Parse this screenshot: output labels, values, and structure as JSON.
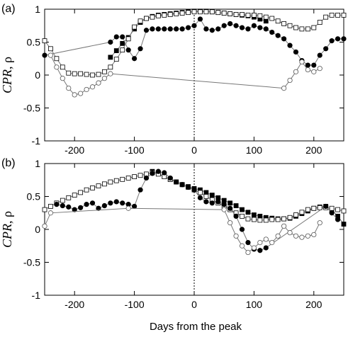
{
  "xlabel": "Days from the peak",
  "ylabel": "CPR, ρ",
  "chart_data": [
    {
      "type": "scatter",
      "panel_label": "(a)",
      "xlim": [
        -250,
        250
      ],
      "ylim": [
        -1,
        1
      ],
      "xticks": [
        -200,
        -100,
        0,
        100,
        200
      ],
      "yticks": [
        -1,
        -0.5,
        0,
        0.5,
        1
      ],
      "xtick_labels": [
        "-200",
        "-100",
        "0",
        "100",
        "200"
      ],
      "ytick_labels": [
        "-1",
        "-0.5",
        "0",
        "0.5",
        "1"
      ],
      "vline_x": 0,
      "series": [
        {
          "marker": "filled-square",
          "x": [
            -140,
            -130,
            -120,
            -110,
            -100,
            -90,
            -80,
            -70,
            -60,
            -50,
            -40,
            -30,
            -20,
            -10,
            0,
            10,
            20,
            30,
            40,
            50,
            60,
            70,
            80,
            90,
            100,
            110,
            120
          ],
          "y": [
            0.27,
            0.37,
            0.48,
            0.57,
            0.7,
            0.8,
            0.86,
            0.89,
            0.91,
            0.92,
            0.93,
            0.94,
            0.95,
            0.96,
            0.97,
            0.97,
            0.97,
            0.96,
            0.95,
            0.94,
            0.93,
            0.92,
            0.91,
            0.9,
            0.88,
            0.85,
            0.82
          ]
        },
        {
          "marker": "open-square",
          "x": [
            -250,
            -240,
            -230,
            -220,
            -210,
            -200,
            -190,
            -180,
            -170,
            -160,
            -150,
            -140,
            -130,
            -120,
            -110,
            -100,
            -90,
            -80,
            -70,
            -60,
            -50,
            -40,
            -30,
            -20,
            -10,
            0,
            10,
            20,
            30,
            40,
            50,
            60,
            70,
            80,
            90,
            100,
            110,
            120,
            130,
            140,
            150,
            160,
            170,
            180,
            190,
            200,
            210,
            220,
            230,
            240,
            250
          ],
          "y": [
            0.52,
            0.4,
            0.25,
            0.12,
            0.03,
            0.02,
            0.02,
            0.01,
            0.0,
            0.01,
            0.05,
            0.12,
            0.24,
            0.38,
            0.55,
            0.73,
            0.82,
            0.86,
            0.88,
            0.9,
            0.91,
            0.92,
            0.93,
            0.94,
            0.95,
            0.96,
            0.96,
            0.96,
            0.96,
            0.95,
            0.94,
            0.93,
            0.92,
            0.92,
            0.91,
            0.91,
            0.9,
            0.88,
            0.86,
            0.82,
            0.78,
            0.75,
            0.72,
            0.7,
            0.7,
            0.72,
            0.8,
            0.88,
            0.91,
            0.91,
            0.91
          ]
        },
        {
          "marker": "filled-circle",
          "x": [
            -250,
            -140,
            -130,
            -120,
            -110,
            -100,
            -90,
            -80,
            -70,
            -60,
            -50,
            -40,
            -30,
            -20,
            -10,
            0,
            10,
            20,
            30,
            40,
            50,
            60,
            70,
            80,
            90,
            100,
            110,
            120,
            130,
            140,
            150,
            160,
            170,
            180,
            190,
            200,
            210,
            220,
            230,
            240,
            250
          ],
          "y": [
            0.3,
            0.5,
            0.58,
            0.58,
            0.38,
            0.25,
            0.4,
            0.68,
            0.7,
            0.7,
            0.7,
            0.7,
            0.7,
            0.7,
            0.72,
            0.75,
            0.85,
            0.7,
            0.68,
            0.7,
            0.75,
            0.78,
            0.75,
            0.72,
            0.7,
            0.75,
            0.72,
            0.7,
            0.65,
            0.6,
            0.55,
            0.45,
            0.35,
            0.22,
            0.15,
            0.15,
            0.3,
            0.4,
            0.52,
            0.55,
            0.55
          ]
        },
        {
          "marker": "open-circle",
          "x": [
            -240,
            -230,
            -220,
            -210,
            -200,
            -190,
            -180,
            -170,
            -160,
            -150,
            -140,
            150,
            160,
            170,
            180,
            190,
            200,
            210
          ],
          "y": [
            0.3,
            0.12,
            -0.05,
            -0.2,
            -0.3,
            -0.28,
            -0.22,
            -0.18,
            -0.12,
            -0.05,
            0.02,
            -0.2,
            -0.08,
            0.05,
            0.2,
            0.08,
            0.05,
            0.1
          ]
        }
      ]
    },
    {
      "type": "scatter",
      "panel_label": "(b)",
      "xlim": [
        -250,
        250
      ],
      "ylim": [
        -1,
        1
      ],
      "xticks": [
        -200,
        -100,
        0,
        100,
        200
      ],
      "yticks": [
        -1,
        -0.5,
        0,
        0.5,
        1
      ],
      "xtick_labels": [
        "-200",
        "-100",
        "0",
        "100",
        "200"
      ],
      "ytick_labels": [
        "-1",
        "-0.5",
        "0",
        "0.5",
        "1"
      ],
      "vline_x": 0,
      "series": [
        {
          "marker": "filled-square",
          "x": [
            -70,
            -60,
            -50,
            -40,
            -30,
            -20,
            -10,
            0,
            10,
            20,
            30,
            40,
            50,
            60,
            70,
            80,
            90,
            100,
            110,
            120,
            130,
            140,
            150,
            160,
            170,
            180,
            190,
            200,
            210,
            220,
            230,
            240,
            250
          ],
          "y": [
            0.88,
            0.85,
            0.8,
            0.76,
            0.72,
            0.68,
            0.65,
            0.62,
            0.6,
            0.56,
            0.52,
            0.48,
            0.44,
            0.4,
            0.36,
            0.3,
            0.26,
            0.22,
            0.2,
            0.18,
            0.17,
            0.16,
            0.16,
            0.17,
            0.2,
            0.24,
            0.28,
            0.32,
            0.34,
            0.35,
            0.3,
            0.2,
            0.08
          ]
        },
        {
          "marker": "open-square",
          "x": [
            -250,
            -240,
            -230,
            -220,
            -210,
            -200,
            -190,
            -180,
            -170,
            -160,
            -150,
            -140,
            -130,
            -120,
            -110,
            -100,
            -90,
            -80,
            -70,
            -60,
            -50,
            -40,
            -30,
            -20,
            -10,
            0,
            10,
            20,
            30,
            40,
            50,
            60,
            70,
            80,
            90,
            100,
            110,
            120,
            130,
            140,
            150,
            160,
            170,
            180,
            190,
            200,
            210,
            220,
            230,
            240,
            250
          ],
          "y": [
            0.3,
            0.35,
            0.4,
            0.44,
            0.48,
            0.52,
            0.56,
            0.6,
            0.63,
            0.66,
            0.69,
            0.72,
            0.74,
            0.76,
            0.78,
            0.8,
            0.82,
            0.84,
            0.86,
            0.84,
            0.8,
            0.76,
            0.72,
            0.68,
            0.64,
            0.6,
            0.56,
            0.5,
            0.45,
            0.4,
            0.35,
            0.3,
            0.25,
            0.2,
            0.16,
            0.15,
            0.14,
            0.14,
            0.15,
            0.15,
            0.16,
            0.18,
            0.22,
            0.26,
            0.3,
            0.32,
            0.33,
            0.33,
            0.32,
            0.3,
            0.28
          ]
        },
        {
          "marker": "filled-circle",
          "x": [
            -230,
            -220,
            -210,
            -200,
            -190,
            -180,
            -170,
            -160,
            -150,
            -140,
            -130,
            -120,
            -110,
            -100,
            -90,
            -80,
            -70,
            -60,
            -50,
            -40,
            -30,
            -20,
            -10,
            0,
            10,
            20,
            30,
            40,
            50,
            60,
            70,
            80,
            90,
            100,
            110,
            120,
            220,
            230,
            240
          ],
          "y": [
            0.38,
            0.36,
            0.34,
            0.3,
            0.33,
            0.38,
            0.4,
            0.32,
            0.36,
            0.4,
            0.42,
            0.4,
            0.38,
            0.35,
            0.6,
            0.78,
            0.85,
            0.88,
            0.86,
            0.78,
            0.72,
            0.68,
            0.64,
            0.6,
            0.48,
            0.42,
            0.4,
            0.42,
            0.38,
            0.32,
            0.2,
            0.0,
            -0.2,
            -0.3,
            -0.32,
            -0.28,
            0.35,
            0.25,
            0.15
          ]
        },
        {
          "marker": "open-circle",
          "x": [
            -250,
            -240,
            -110,
            50,
            60,
            70,
            80,
            90,
            100,
            110,
            120,
            130,
            140,
            150,
            160,
            170,
            180,
            190,
            200,
            210
          ],
          "y": [
            0.05,
            0.25,
            0.32,
            0.3,
            0.1,
            -0.1,
            -0.25,
            -0.35,
            -0.28,
            -0.2,
            -0.15,
            -0.2,
            -0.1,
            0.05,
            -0.05,
            -0.1,
            -0.12,
            -0.1,
            -0.08,
            0.1
          ]
        }
      ]
    }
  ]
}
